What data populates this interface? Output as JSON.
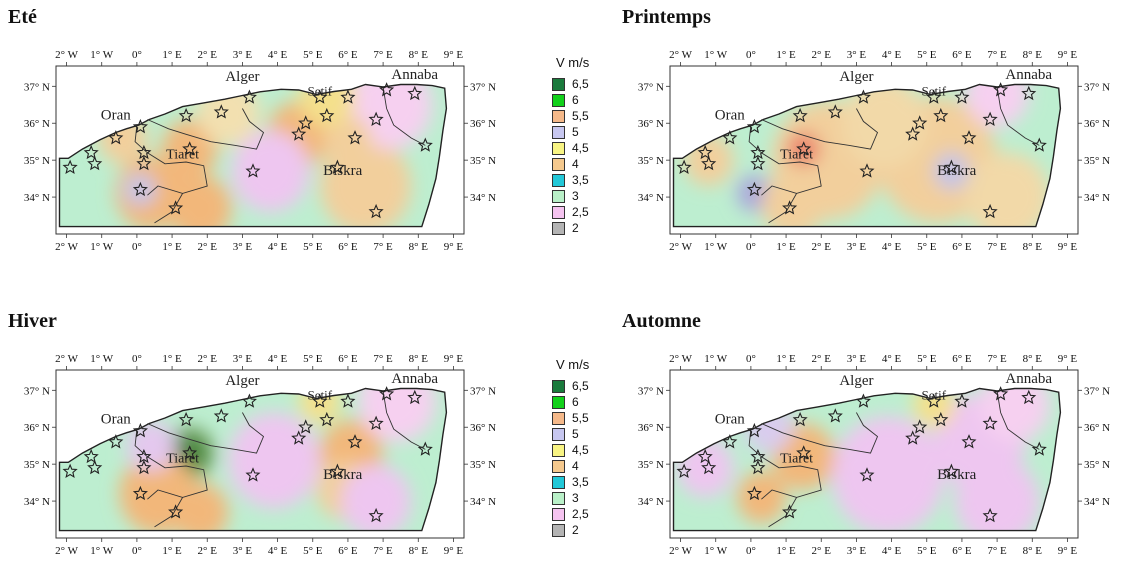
{
  "maps": [
    {
      "id": "ete",
      "title": "Eté",
      "hot": [
        {
          "x": 1.5,
          "y": 35.3,
          "r": 0.8,
          "c": "#f2b77a"
        },
        {
          "x": 0.4,
          "y": 34.1,
          "r": 1.0,
          "c": "#f2b77a"
        },
        {
          "x": 1.8,
          "y": 33.7,
          "r": 0.9,
          "c": "#f2b77a"
        },
        {
          "x": 6.5,
          "y": 34.3,
          "r": 1.3,
          "c": "#f2cf9c"
        },
        {
          "x": 4.6,
          "y": 35.7,
          "r": 0.9,
          "c": "#f2b77a"
        },
        {
          "x": -0.4,
          "y": 35.6,
          "r": 0.7,
          "c": "#f2cf9c"
        },
        {
          "x": 7.2,
          "y": 36.5,
          "r": 1.2,
          "c": "#f6d0f0"
        },
        {
          "x": 3.8,
          "y": 34.7,
          "r": 1.1,
          "c": "#eec6f0"
        },
        {
          "x": 6.0,
          "y": 35.5,
          "r": 0.7,
          "c": "#f2cf9c"
        },
        {
          "x": 0.1,
          "y": 34.2,
          "r": 0.45,
          "c": "#c4c6ea"
        },
        {
          "x": 5.4,
          "y": 36.7,
          "r": 0.8,
          "c": "#f4e08c"
        },
        {
          "x": 2.6,
          "y": 36.3,
          "r": 0.9,
          "c": "#f2e0b0"
        }
      ]
    },
    {
      "id": "printemps",
      "title": "Printemps",
      "hot": [
        {
          "x": 2.2,
          "y": 35.0,
          "r": 1.6,
          "c": "#f2cf9c"
        },
        {
          "x": 5.3,
          "y": 35.0,
          "r": 1.7,
          "c": "#f2cf9c"
        },
        {
          "x": 0.1,
          "y": 34.1,
          "r": 0.5,
          "c": "#a9a6dc"
        },
        {
          "x": 1.5,
          "y": 35.3,
          "r": 0.45,
          "c": "#ea7b68"
        },
        {
          "x": 5.7,
          "y": 34.7,
          "r": 0.5,
          "c": "#c2c4e8"
        },
        {
          "x": 1.2,
          "y": 33.8,
          "r": 0.9,
          "c": "#f2cf9c"
        },
        {
          "x": 3.8,
          "y": 36.0,
          "r": 1.2,
          "c": "#f2d9a8"
        },
        {
          "x": -1.2,
          "y": 35.0,
          "r": 0.7,
          "c": "#f2cf9c"
        },
        {
          "x": 7.0,
          "y": 36.8,
          "r": 0.9,
          "c": "#f6d0f0"
        },
        {
          "x": 7.3,
          "y": 34.0,
          "r": 1.2,
          "c": "#f2d9a8"
        }
      ]
    },
    {
      "id": "hiver",
      "title": "Hiver",
      "hot": [
        {
          "x": 1.5,
          "y": 35.3,
          "r": 0.7,
          "c": "#6c9a58"
        },
        {
          "x": 1.5,
          "y": 35.3,
          "r": 0.35,
          "c": "#237a2a"
        },
        {
          "x": 0.6,
          "y": 34.2,
          "r": 1.1,
          "c": "#f2b77a"
        },
        {
          "x": 1.8,
          "y": 33.7,
          "r": 0.8,
          "c": "#f2b77a"
        },
        {
          "x": 6.1,
          "y": 35.3,
          "r": 0.9,
          "c": "#f2b77a"
        },
        {
          "x": 5.9,
          "y": 34.3,
          "r": 0.8,
          "c": "#f2cf9c"
        },
        {
          "x": 3.9,
          "y": 35.1,
          "r": 1.3,
          "c": "#eec6f0"
        },
        {
          "x": 0.4,
          "y": 35.5,
          "r": 0.7,
          "c": "#e4c8ee"
        },
        {
          "x": 5.2,
          "y": 36.7,
          "r": 0.6,
          "c": "#f4e08c"
        },
        {
          "x": 7.4,
          "y": 36.7,
          "r": 1.1,
          "c": "#f6d0f0"
        },
        {
          "x": 6.8,
          "y": 34.0,
          "r": 1.0,
          "c": "#eec6f0"
        }
      ]
    },
    {
      "id": "automne",
      "title": "Automne",
      "hot": [
        {
          "x": 1.5,
          "y": 35.2,
          "r": 0.9,
          "c": "#f2b77a"
        },
        {
          "x": 0.3,
          "y": 34.1,
          "r": 0.7,
          "c": "#f2b77a"
        },
        {
          "x": 3.9,
          "y": 34.7,
          "r": 1.6,
          "c": "#eec6f0"
        },
        {
          "x": 6.5,
          "y": 35.6,
          "r": 1.3,
          "c": "#eec6f0"
        },
        {
          "x": 7.5,
          "y": 36.6,
          "r": 1.0,
          "c": "#f6d0f0"
        },
        {
          "x": 5.2,
          "y": 36.6,
          "r": 0.6,
          "c": "#f4e08c"
        },
        {
          "x": 7.0,
          "y": 34.0,
          "r": 1.2,
          "c": "#eec6f0"
        },
        {
          "x": -1.3,
          "y": 34.9,
          "r": 0.8,
          "c": "#eec6f0"
        },
        {
          "x": 0.5,
          "y": 36.0,
          "r": 0.7,
          "c": "#d9ccee"
        }
      ]
    }
  ],
  "lon_labels": [
    "2° W",
    "1° W",
    "0°",
    "1° E",
    "2° E",
    "3° E",
    "4° E",
    "5° E",
    "6° E",
    "7° E",
    "8° E",
    "9° E"
  ],
  "lat_labels": [
    "37° N",
    "36° N",
    "35° N",
    "34° N"
  ],
  "cities": {
    "alger": "Alger",
    "annaba": "Annaba",
    "oran": "Oran",
    "tiaret": "Tiaret",
    "biskra": "Biskra",
    "setif": "Setif"
  },
  "stations": [
    [
      -1.9,
      34.8
    ],
    [
      -1.3,
      35.2
    ],
    [
      -1.2,
      34.9
    ],
    [
      -0.6,
      35.6
    ],
    [
      0.1,
      35.9
    ],
    [
      0.2,
      35.2
    ],
    [
      0.2,
      34.9
    ],
    [
      0.1,
      34.2
    ],
    [
      1.5,
      35.3
    ],
    [
      1.4,
      36.2
    ],
    [
      2.4,
      36.3
    ],
    [
      3.2,
      36.7
    ],
    [
      1.1,
      33.7
    ],
    [
      3.3,
      34.7
    ],
    [
      4.6,
      35.7
    ],
    [
      4.8,
      36.0
    ],
    [
      5.2,
      36.7
    ],
    [
      5.4,
      36.2
    ],
    [
      6.0,
      36.7
    ],
    [
      5.7,
      34.8
    ],
    [
      6.2,
      35.6
    ],
    [
      6.8,
      36.1
    ],
    [
      7.1,
      36.9
    ],
    [
      7.9,
      36.8
    ],
    [
      8.2,
      35.4
    ],
    [
      6.8,
      33.6
    ]
  ],
  "legend": {
    "title": "V m/s",
    "items": [
      {
        "label": "6,5",
        "color": "#1a7a3c"
      },
      {
        "label": "6",
        "color": "#12d11b"
      },
      {
        "label": "5,5",
        "color": "#f5b98a"
      },
      {
        "label": "5",
        "color": "#c7c7f0"
      },
      {
        "label": "4,5",
        "color": "#f8f483"
      },
      {
        "label": "4",
        "color": "#f5c98e"
      },
      {
        "label": "3,5",
        "color": "#22c8d8"
      },
      {
        "label": "3",
        "color": "#b9f0c8"
      },
      {
        "label": "2,5",
        "color": "#f5c3f0"
      },
      {
        "label": "2",
        "color": "#b4b4b4"
      }
    ]
  }
}
